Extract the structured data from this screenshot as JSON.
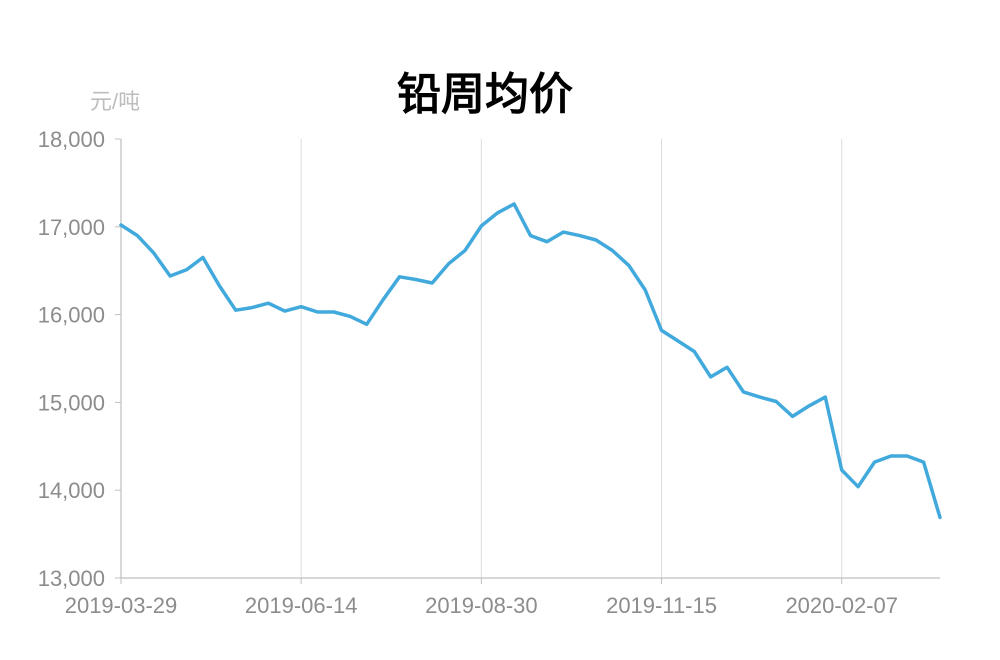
{
  "chart_data": {
    "type": "line",
    "title": "铅周均价",
    "ylabel": "元/吨",
    "ylim": [
      13000,
      18000
    ],
    "yticks": [
      13000,
      14000,
      15000,
      16000,
      17000,
      18000
    ],
    "ytick_labels": [
      "13,000",
      "14,000",
      "15,000",
      "16,000",
      "17,000",
      "18,000"
    ],
    "xtick_labels": [
      "2019-03-29",
      "2019-06-14",
      "2019-08-30",
      "2019-11-15",
      "2020-02-07"
    ],
    "xtick_index": [
      0,
      11,
      22,
      33,
      44
    ],
    "grid": "vertical",
    "color": "#41a9dc",
    "series": [
      {
        "values": [
          17020,
          16900,
          16700,
          16440,
          16510,
          16650,
          16330,
          16050,
          16080,
          16130,
          16040,
          16090,
          16030,
          16030,
          15980,
          15890,
          16170,
          16430,
          16400,
          16360,
          16580,
          16730,
          17010,
          17160,
          17260,
          16900,
          16830,
          16940,
          16900,
          16850,
          16730,
          16560,
          16280,
          15820,
          15700,
          15580,
          15290,
          15400,
          15120,
          15060,
          15010,
          14840,
          14960,
          15060,
          14230,
          14040,
          14320,
          14390,
          14390,
          14320,
          13690
        ]
      }
    ]
  }
}
